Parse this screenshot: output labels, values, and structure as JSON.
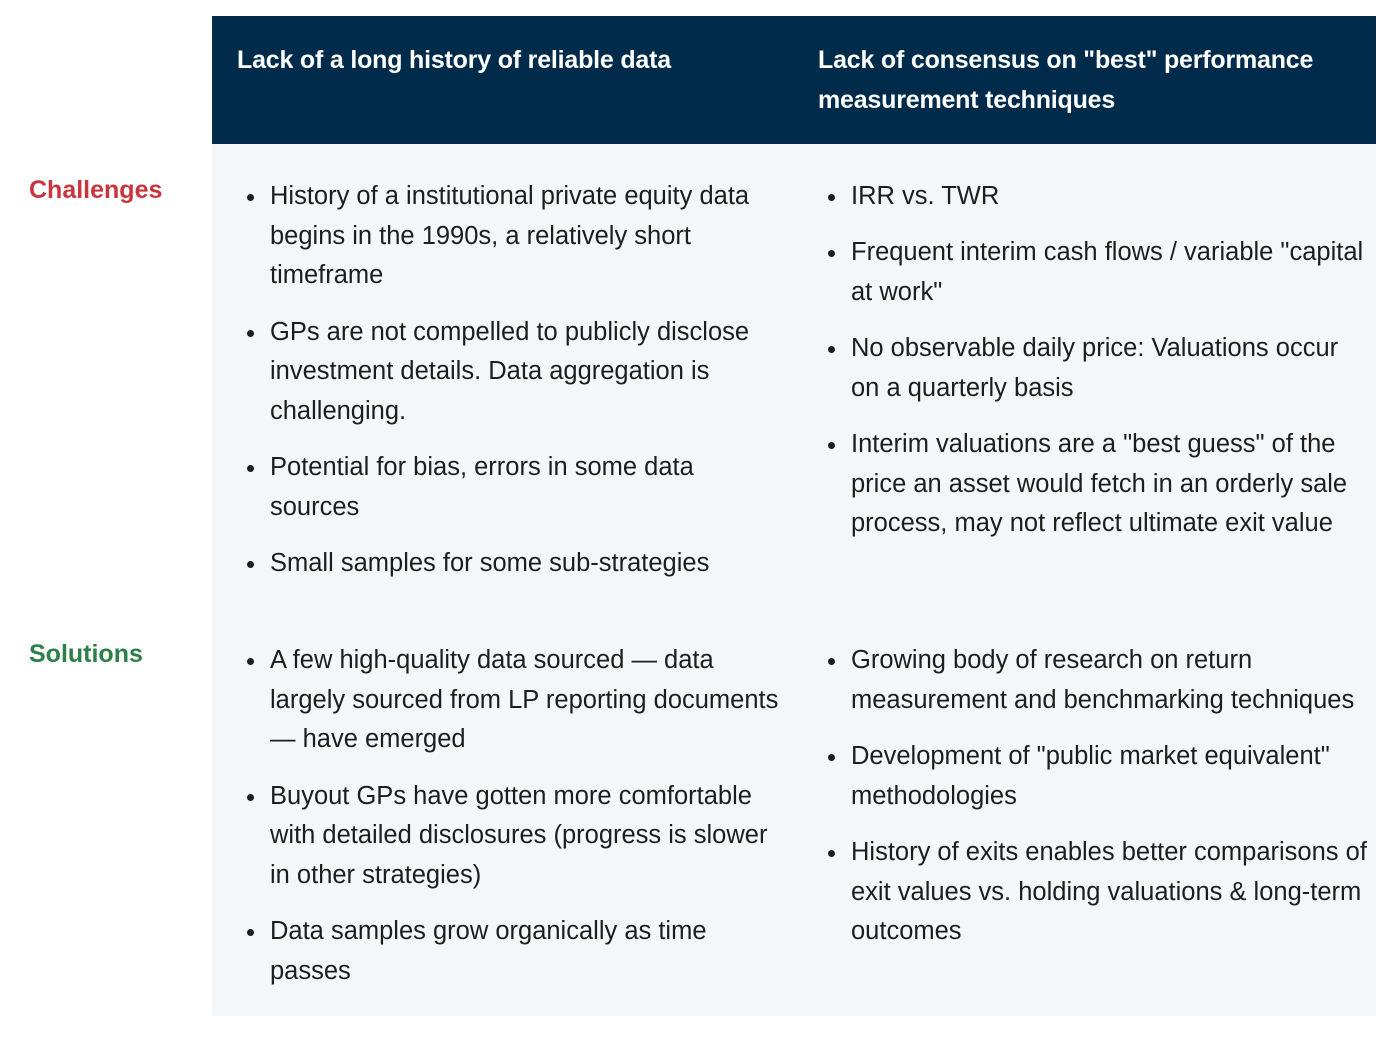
{
  "header": {
    "col1": "Lack of a long history of reliable data",
    "col2": "Lack of consensus on \"best\" performance measurement techniques"
  },
  "rows": {
    "challenges": {
      "label": "Challenges",
      "label_color": "#c8353c",
      "col1": [
        "History of a institutional private equity data begins in the 1990s, a relatively short timeframe",
        "GPs are not compelled to publicly disclose investment details. Data aggregation is challenging.",
        "Potential for bias, errors in some data sources",
        "Small samples for some sub-strategies"
      ],
      "col2": [
        "IRR vs. TWR",
        "Frequent interim cash flows / variable \"capital at work\"",
        "No observable daily price: Valuations occur on a quarterly basis",
        "Interim valuations are a \"best guess\" of the price an asset would fetch in an orderly sale process, may not reflect ultimate exit value"
      ]
    },
    "solutions": {
      "label": "Solutions",
      "label_color": "#2e8049",
      "col1": [
        "A few high-quality data sourced  — data largely sourced from LP reporting documents — have emerged",
        "Buyout GPs have gotten more comfortable with detailed disclosures (progress is slower in other strategies)",
        "Data samples grow organically as time passes"
      ],
      "col2": [
        "Growing body of research on return measurement and benchmarking techniques",
        "Development of \"public market equivalent\" methodologies",
        "History of exits enables better comparisons of exit values vs. holding valuations & long-term outcomes"
      ]
    }
  },
  "colors": {
    "header_bg": "#012b4b",
    "body_bg": "#f4f7f9"
  }
}
